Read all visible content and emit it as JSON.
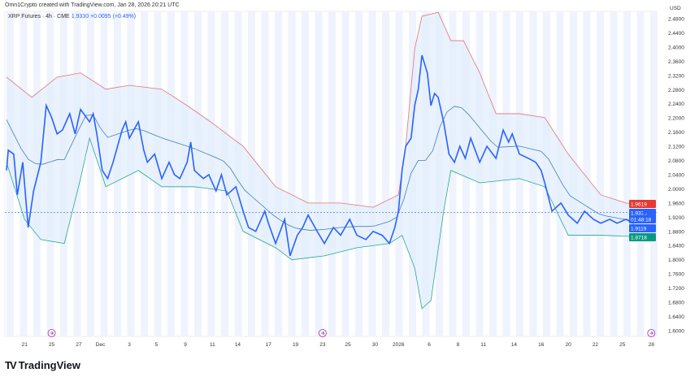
{
  "header": {
    "credit": "Omn1Crypto created with TradingView.com, Jan 28, 2026 20:21 UTC",
    "symbol": "XRP Futures · 4h · CME",
    "last": "1.9330",
    "change": "+0.0095 (+0.49%)"
  },
  "footer": {
    "brand": "TradingView"
  },
  "colors": {
    "price": "#2962ff",
    "upper": "#e57373",
    "lower": "#26a69a",
    "middle": "#3f7fbf",
    "band_fill": "#e3effd",
    "current_bg": "#2962ff",
    "upper_bg": "#e53935",
    "lower_bg": "#089981"
  },
  "chart_data": {
    "type": "line",
    "title": "XRP Futures · 4h · CME",
    "currency": "USD",
    "ylim": [
      1.58,
      2.5
    ],
    "y_ticks": [
      "2.4800",
      "2.4400",
      "2.4000",
      "2.3600",
      "2.3200",
      "2.2800",
      "2.2400",
      "2.2000",
      "2.1600",
      "2.1200",
      "2.0800",
      "2.0400",
      "2.0000",
      "1.9600",
      "1.9200",
      "1.8800",
      "1.8400",
      "1.8000",
      "1.7600",
      "1.7200",
      "1.6800",
      "1.6400",
      "1.6000"
    ],
    "x_ticks": [
      [
        10,
        "21"
      ],
      [
        25,
        "25"
      ],
      [
        40,
        "27"
      ],
      [
        52,
        "Dec"
      ],
      [
        68,
        "3"
      ],
      [
        83,
        "5"
      ],
      [
        99,
        "9"
      ],
      [
        114,
        "11"
      ],
      [
        128,
        "14"
      ],
      [
        145,
        "17"
      ],
      [
        160,
        "19"
      ],
      [
        175,
        "23"
      ],
      [
        189,
        "25"
      ],
      [
        204,
        "30"
      ],
      [
        217,
        "2026"
      ],
      [
        234,
        "6"
      ],
      [
        250,
        "8"
      ],
      [
        264,
        "11"
      ],
      [
        281,
        "14"
      ],
      [
        296,
        "16"
      ],
      [
        311,
        "20"
      ],
      [
        326,
        "22"
      ],
      [
        341,
        "25"
      ],
      [
        357,
        "28"
      ]
    ],
    "price": [
      [
        0,
        2.052
      ],
      [
        1,
        2.109
      ],
      [
        4,
        2.098
      ],
      [
        6,
        1.983
      ],
      [
        9,
        2.075
      ],
      [
        12,
        1.891
      ],
      [
        15,
        1.994
      ],
      [
        19,
        2.075
      ],
      [
        22,
        2.235
      ],
      [
        25,
        2.201
      ],
      [
        28,
        2.155
      ],
      [
        31,
        2.166
      ],
      [
        35,
        2.212
      ],
      [
        38,
        2.155
      ],
      [
        41,
        2.224
      ],
      [
        46,
        2.189
      ],
      [
        48,
        2.212
      ],
      [
        50,
        2.155
      ],
      [
        53,
        2.052
      ],
      [
        56,
        2.029
      ],
      [
        59,
        2.075
      ],
      [
        64,
        2.166
      ],
      [
        66,
        2.189
      ],
      [
        68,
        2.143
      ],
      [
        73,
        2.189
      ],
      [
        76,
        2.109
      ],
      [
        78,
        2.075
      ],
      [
        82,
        2.098
      ],
      [
        86,
        2.029
      ],
      [
        90,
        2.075
      ],
      [
        93,
        2.04
      ],
      [
        96,
        2.029
      ],
      [
        100,
        2.075
      ],
      [
        102,
        2.132
      ],
      [
        104,
        2.052
      ],
      [
        109,
        2.029
      ],
      [
        112,
        2.04
      ],
      [
        116,
        1.994
      ],
      [
        119,
        2.04
      ],
      [
        122,
        1.983
      ],
      [
        127,
        2.006
      ],
      [
        131,
        1.937
      ],
      [
        134,
        1.891
      ],
      [
        138,
        1.88
      ],
      [
        143,
        1.937
      ],
      [
        145,
        1.903
      ],
      [
        149,
        1.846
      ],
      [
        154,
        1.914
      ],
      [
        157,
        1.811
      ],
      [
        161,
        1.869
      ],
      [
        164,
        1.891
      ],
      [
        167,
        1.926
      ],
      [
        172,
        1.88
      ],
      [
        176,
        1.846
      ],
      [
        181,
        1.891
      ],
      [
        185,
        1.869
      ],
      [
        190,
        1.914
      ],
      [
        194,
        1.869
      ],
      [
        199,
        1.857
      ],
      [
        203,
        1.88
      ],
      [
        208,
        1.869
      ],
      [
        212,
        1.846
      ],
      [
        215,
        1.891
      ],
      [
        217,
        1.937
      ],
      [
        219,
        2.052
      ],
      [
        221,
        2.12
      ],
      [
        224,
        2.143
      ],
      [
        226,
        2.235
      ],
      [
        228,
        2.281
      ],
      [
        230,
        2.377
      ],
      [
        233,
        2.327
      ],
      [
        235,
        2.235
      ],
      [
        237,
        2.269
      ],
      [
        239,
        2.258
      ],
      [
        242,
        2.189
      ],
      [
        245,
        2.098
      ],
      [
        248,
        2.075
      ],
      [
        251,
        2.12
      ],
      [
        254,
        2.086
      ],
      [
        257,
        2.143
      ],
      [
        262,
        2.075
      ],
      [
        266,
        2.12
      ],
      [
        271,
        2.086
      ],
      [
        275,
        2.166
      ],
      [
        278,
        2.132
      ],
      [
        280,
        2.155
      ],
      [
        284,
        2.098
      ],
      [
        289,
        2.086
      ],
      [
        293,
        2.075
      ],
      [
        296,
        2.052
      ],
      [
        298,
        2.017
      ],
      [
        302,
        1.937
      ],
      [
        307,
        1.96
      ],
      [
        311,
        1.926
      ],
      [
        316,
        1.903
      ],
      [
        320,
        1.937
      ],
      [
        325,
        1.914
      ],
      [
        329,
        1.903
      ],
      [
        334,
        1.914
      ],
      [
        338,
        1.903
      ],
      [
        343,
        1.914
      ],
      [
        347,
        1.903
      ],
      [
        352,
        1.926
      ],
      [
        356,
        1.933
      ]
    ],
    "upper": [
      [
        0,
        2.315
      ],
      [
        14,
        2.258
      ],
      [
        28,
        2.315
      ],
      [
        41,
        2.327
      ],
      [
        55,
        2.281
      ],
      [
        68,
        2.292
      ],
      [
        86,
        2.281
      ],
      [
        100,
        2.235
      ],
      [
        113,
        2.189
      ],
      [
        131,
        2.12
      ],
      [
        149,
        2.006
      ],
      [
        167,
        1.96
      ],
      [
        185,
        1.96
      ],
      [
        203,
        1.948
      ],
      [
        217,
        1.983
      ],
      [
        221,
        2.12
      ],
      [
        226,
        2.395
      ],
      [
        230,
        2.487
      ],
      [
        239,
        2.498
      ],
      [
        246,
        2.418
      ],
      [
        253,
        2.418
      ],
      [
        262,
        2.327
      ],
      [
        271,
        2.212
      ],
      [
        284,
        2.212
      ],
      [
        298,
        2.201
      ],
      [
        311,
        2.098
      ],
      [
        329,
        1.983
      ],
      [
        343,
        1.96
      ],
      [
        356,
        1.948
      ]
    ],
    "lower": [
      [
        0,
        2.075
      ],
      [
        10,
        1.914
      ],
      [
        19,
        1.857
      ],
      [
        32,
        1.846
      ],
      [
        41,
        2.029
      ],
      [
        46,
        2.143
      ],
      [
        55,
        2.006
      ],
      [
        73,
        2.052
      ],
      [
        86,
        2.006
      ],
      [
        104,
        2.006
      ],
      [
        122,
        1.994
      ],
      [
        131,
        1.88
      ],
      [
        149,
        1.834
      ],
      [
        158,
        1.8
      ],
      [
        176,
        1.811
      ],
      [
        194,
        1.834
      ],
      [
        212,
        1.846
      ],
      [
        219,
        1.869
      ],
      [
        226,
        1.777
      ],
      [
        230,
        1.662
      ],
      [
        235,
        1.685
      ],
      [
        242,
        1.937
      ],
      [
        246,
        2.052
      ],
      [
        262,
        2.017
      ],
      [
        284,
        2.029
      ],
      [
        298,
        2.006
      ],
      [
        311,
        1.869
      ],
      [
        329,
        1.869
      ],
      [
        356,
        1.864
      ]
    ],
    "labels": {
      "upper": "1.9619",
      "current": "1.9330",
      "countdown": "01:48:18",
      "middle": "1.9119",
      "lower": "1.8718"
    }
  }
}
